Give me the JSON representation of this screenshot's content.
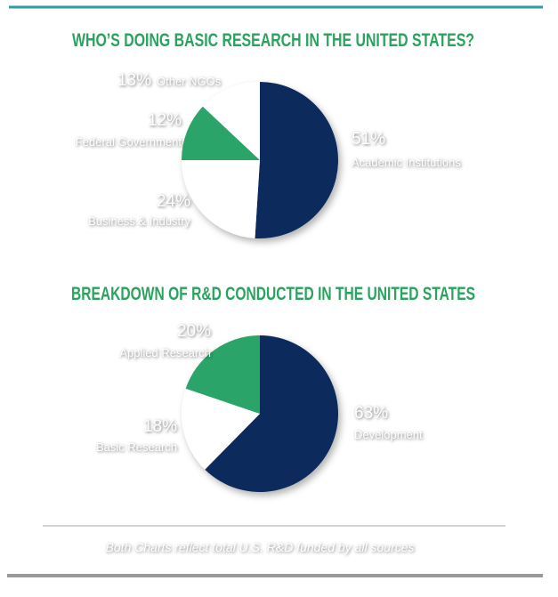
{
  "chart_data": [
    {
      "type": "pie",
      "title": "WHO’S DOING BASIC RESEARCH IN THE UNITED STATES?",
      "categories": [
        "Academic Institutions",
        "Business & Industry",
        "Federal Government",
        "Other NGOs"
      ],
      "values": [
        51,
        24,
        12,
        13
      ],
      "value_labels": [
        "51%",
        "24%",
        "12%",
        "13%"
      ],
      "colors": [
        "#0b2a5b",
        "#ffffff",
        "#29a467",
        "#ffffff"
      ]
    },
    {
      "type": "pie",
      "title": "BREAKDOWN OF R&D CONDUCTED IN THE UNITED STATES",
      "categories": [
        "Development",
        "Basic Research",
        "Applied Research"
      ],
      "values": [
        63,
        18,
        20
      ],
      "value_labels": [
        "63%",
        "18%",
        "20%"
      ],
      "colors": [
        "#0b2a5b",
        "#ffffff",
        "#29a467"
      ]
    }
  ],
  "footnote": "Both Charts reflect total U.S. R&D funded by all sources"
}
